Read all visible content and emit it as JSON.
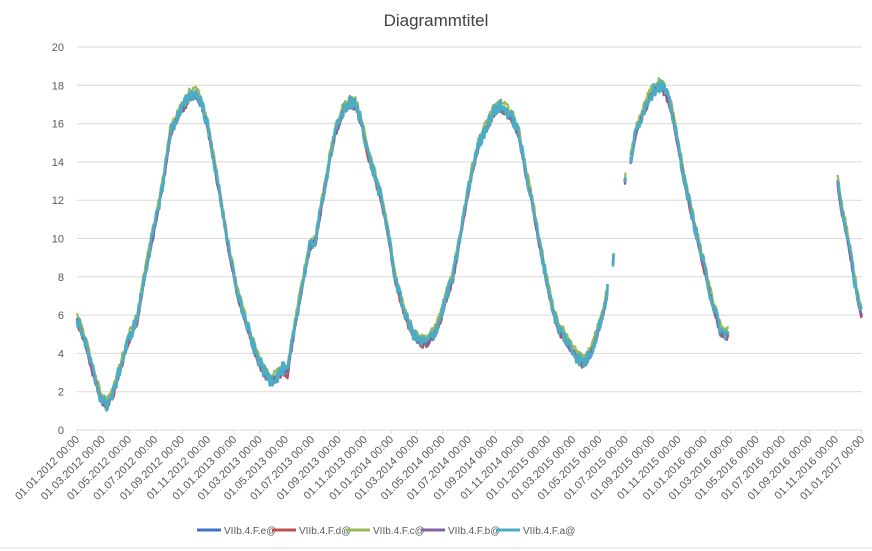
{
  "chart_data": {
    "type": "line",
    "title": "Diagrammtitel",
    "xlabel": "",
    "ylabel": "",
    "ylim": [
      0,
      20
    ],
    "yticks": [
      "0",
      "2",
      "4",
      "6",
      "8",
      "10",
      "12",
      "14",
      "16",
      "18",
      "20"
    ],
    "xlim": [
      "2012-01-01",
      "2017-01-01"
    ],
    "xtick_labels": [
      "01.01.2012 00:00",
      "01.03.2012 00:00",
      "01.05.2012 00:00",
      "01.07.2012 00:00",
      "01.09.2012 00:00",
      "01.11.2012 00:00",
      "01.01.2013 00:00",
      "01.03.2013 00:00",
      "01.05.2013 00:00",
      "01.07.2013 00:00",
      "01.09.2013 00:00",
      "01.11.2013 00:00",
      "01.01.2014 00:00",
      "01.03.2014 00:00",
      "01.05.2014 00:00",
      "01.07.2014 00:00",
      "01.09.2014 00:00",
      "01.11.2014 00:00",
      "01.01.2015 00:00",
      "01.03.2015 00:00",
      "01.05.2015 00:00",
      "01.07.2015 00:00",
      "01.09.2015 00:00",
      "01.11.2015 00:00",
      "01.01.2016 00:00",
      "01.03.2016 00:00",
      "01.05.2016 00:00",
      "01.07.2016 00:00",
      "01.09.2016 00:00",
      "01.11.2016 00:00",
      "01.01.2017 00:00"
    ],
    "grid": true,
    "legend_position": "bottom",
    "series": [
      {
        "name": "VIIb.4.F.e@",
        "color": "#4472C4"
      },
      {
        "name": "VIIb.4.F.d@",
        "color": "#C0504D"
      },
      {
        "name": "VIIb.4.F.c@",
        "color": "#9BBB59"
      },
      {
        "name": "VIIb.4.F.b@",
        "color": "#8064A2"
      },
      {
        "name": "VIIb.4.F.a@",
        "color": "#4BACC6"
      }
    ],
    "series_offsets": [
      0.0,
      -0.15,
      0.25,
      -0.1,
      0.0
    ],
    "base_segments": [
      [
        [
          "2012-01-01",
          5.8
        ],
        [
          "2012-01-10",
          5.3
        ],
        [
          "2012-01-25",
          4.2
        ],
        [
          "2012-02-10",
          2.8
        ],
        [
          "2012-02-25",
          1.7
        ],
        [
          "2012-03-10",
          1.3
        ],
        [
          "2012-03-25",
          1.9
        ],
        [
          "2012-04-10",
          3.2
        ],
        [
          "2012-05-01",
          4.8
        ],
        [
          "2012-05-20",
          5.8
        ],
        [
          "2012-06-10",
          8.5
        ],
        [
          "2012-07-01",
          10.8
        ],
        [
          "2012-07-20",
          13.0
        ],
        [
          "2012-08-05",
          15.5
        ],
        [
          "2012-08-20",
          16.3
        ],
        [
          "2012-09-05",
          16.9
        ],
        [
          "2012-09-20",
          17.5
        ],
        [
          "2012-10-01",
          17.6
        ],
        [
          "2012-10-15",
          17.2
        ],
        [
          "2012-10-30",
          16.0
        ],
        [
          "2012-11-15",
          14.0
        ],
        [
          "2012-12-01",
          12.0
        ],
        [
          "2012-12-20",
          9.3
        ],
        [
          "2013-01-10",
          7.0
        ],
        [
          "2013-01-30",
          5.5
        ],
        [
          "2013-02-20",
          4.0
        ],
        [
          "2013-03-10",
          3.1
        ],
        [
          "2013-03-25",
          2.6
        ],
        [
          "2013-04-10",
          2.8
        ],
        [
          "2013-04-25",
          3.2
        ],
        [
          "2013-05-05",
          3.0
        ],
        [
          "2013-05-20",
          5.2
        ],
        [
          "2013-06-10",
          7.8
        ],
        [
          "2013-06-25",
          9.5
        ],
        [
          "2013-07-10",
          10.0
        ],
        [
          "2013-07-25",
          12.0
        ],
        [
          "2013-08-10",
          14.0
        ],
        [
          "2013-08-25",
          15.6
        ],
        [
          "2013-09-10",
          16.6
        ],
        [
          "2013-09-25",
          17.1
        ],
        [
          "2013-10-10",
          17.0
        ],
        [
          "2013-10-25",
          16.0
        ],
        [
          "2013-11-10",
          14.3
        ],
        [
          "2013-11-25",
          13.2
        ],
        [
          "2013-12-10",
          12.0
        ],
        [
          "2013-12-25",
          10.3
        ],
        [
          "2014-01-10",
          8.0
        ],
        [
          "2014-01-25",
          6.7
        ],
        [
          "2014-02-10",
          5.6
        ],
        [
          "2014-02-25",
          4.9
        ],
        [
          "2014-03-10",
          4.6
        ],
        [
          "2014-03-25",
          4.6
        ],
        [
          "2014-04-10",
          5.0
        ],
        [
          "2014-04-25",
          5.8
        ],
        [
          "2014-05-10",
          7.0
        ],
        [
          "2014-05-25",
          8.0
        ],
        [
          "2014-06-10",
          10.0
        ],
        [
          "2014-06-25",
          12.0
        ],
        [
          "2014-07-10",
          13.7
        ],
        [
          "2014-07-25",
          15.0
        ],
        [
          "2014-08-10",
          15.8
        ],
        [
          "2014-08-25",
          16.5
        ],
        [
          "2014-09-10",
          16.9
        ],
        [
          "2014-09-25",
          16.7
        ],
        [
          "2014-10-10",
          16.3
        ],
        [
          "2014-10-25",
          15.5
        ],
        [
          "2014-11-10",
          13.5
        ],
        [
          "2014-11-25",
          12.0
        ],
        [
          "2014-12-10",
          10.0
        ],
        [
          "2014-12-25",
          8.3
        ],
        [
          "2015-01-10",
          6.5
        ],
        [
          "2015-01-25",
          5.3
        ],
        [
          "2015-02-05",
          5.0
        ],
        [
          "2015-02-20",
          4.4
        ],
        [
          "2015-03-10",
          3.8
        ],
        [
          "2015-03-25",
          3.5
        ],
        [
          "2015-04-10",
          4.0
        ],
        [
          "2015-04-25",
          5.0
        ],
        [
          "2015-05-10",
          6.2
        ],
        [
          "2015-05-20",
          7.3
        ]
      ],
      [
        [
          "2015-06-01",
          8.8
        ],
        [
          "2015-06-03",
          9.0
        ]
      ],
      [
        [
          "2015-06-28",
          12.9
        ],
        [
          "2015-07-01",
          13.1
        ]
      ],
      [
        [
          "2015-07-12",
          14.0
        ],
        [
          "2015-07-25",
          15.6
        ],
        [
          "2015-08-10",
          16.6
        ],
        [
          "2015-08-25",
          17.4
        ],
        [
          "2015-09-10",
          17.9
        ],
        [
          "2015-09-20",
          18.0
        ],
        [
          "2015-10-01",
          17.7
        ],
        [
          "2015-10-15",
          16.8
        ],
        [
          "2015-11-01",
          14.8
        ],
        [
          "2015-11-15",
          13.0
        ],
        [
          "2015-12-01",
          11.4
        ],
        [
          "2015-12-15",
          10.0
        ],
        [
          "2016-01-01",
          8.4
        ],
        [
          "2016-01-15",
          7.0
        ],
        [
          "2016-01-30",
          5.8
        ],
        [
          "2016-02-08",
          5.1
        ],
        [
          "2016-02-25",
          5.0
        ]
      ],
      [
        [
          "2016-11-05",
          13.0
        ],
        [
          "2016-11-15",
          11.5
        ],
        [
          "2016-11-25",
          10.5
        ],
        [
          "2016-12-05",
          9.2
        ],
        [
          "2016-12-15",
          7.8
        ],
        [
          "2016-12-25",
          6.6
        ],
        [
          "2017-01-01",
          6.0
        ]
      ]
    ]
  }
}
